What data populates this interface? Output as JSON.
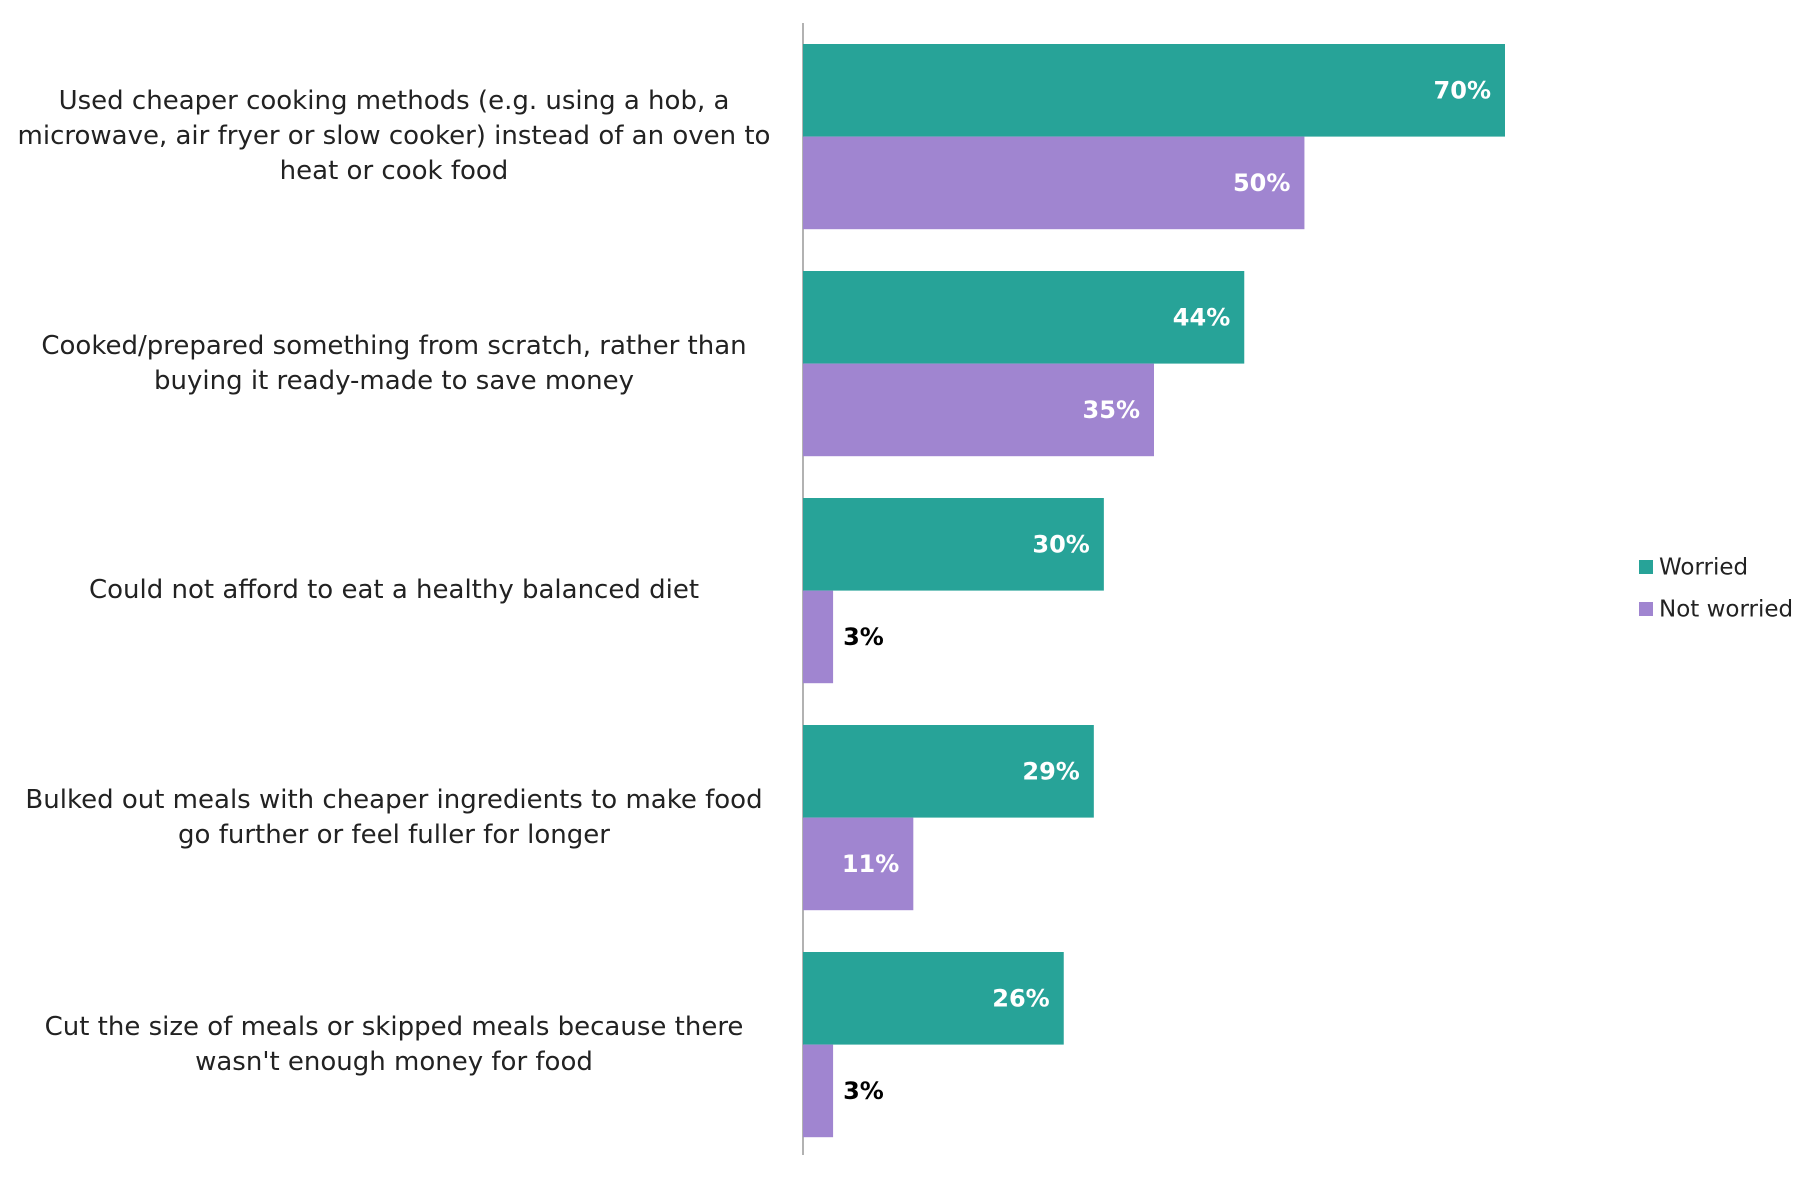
{
  "chart_data": {
    "type": "bar",
    "orientation": "horizontal",
    "categories": [
      "Used cheaper cooking methods (e.g. using a hob, a microwave, air fryer or slow cooker) instead of an oven to heat or cook food",
      "Cooked/prepared something from scratch, rather than buying it ready-made to save money",
      "Could not afford to eat a healthy balanced diet",
      "Bulked out meals with cheaper ingredients to make food go further or feel fuller for longer",
      "Cut the size of meals or skipped meals because there wasn't enough money for food"
    ],
    "series": [
      {
        "name": "Worried",
        "color": "#27a398",
        "values": [
          70,
          44,
          30,
          29,
          26
        ],
        "value_labels": [
          "70%",
          "44%",
          "30%",
          "29%",
          "26%"
        ]
      },
      {
        "name": "Not worried",
        "color": "#a085d0",
        "values": [
          50,
          35,
          3,
          11,
          3
        ],
        "value_labels": [
          "50%",
          "35%",
          "3%",
          "11%",
          "3%"
        ]
      }
    ],
    "legend": "right"
  }
}
